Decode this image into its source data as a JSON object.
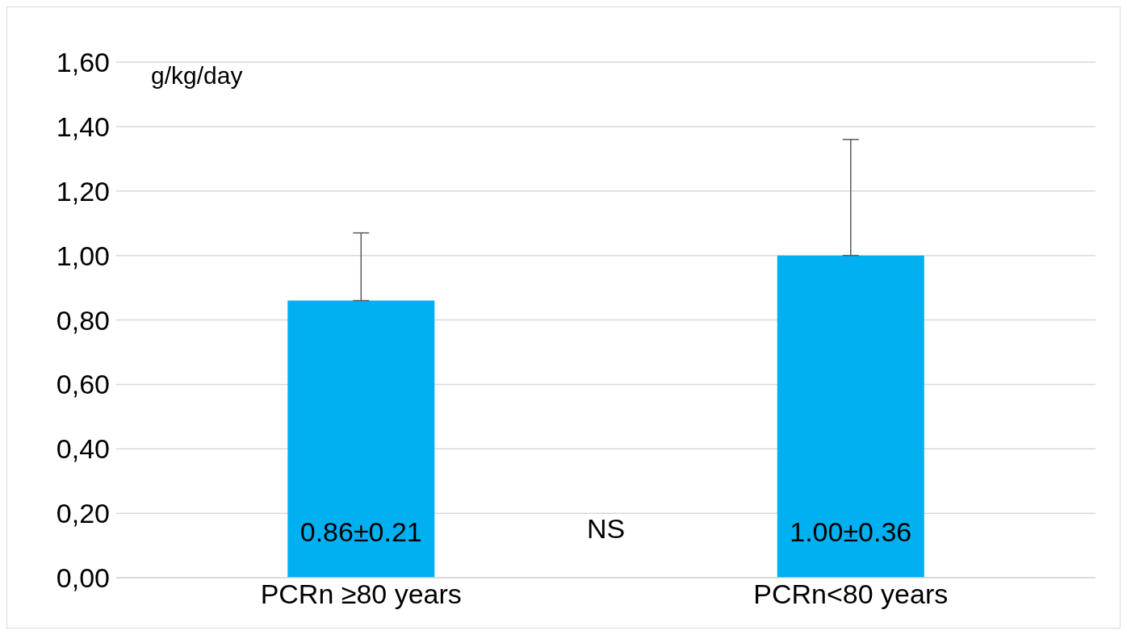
{
  "chart_data": {
    "type": "bar",
    "ylabel": "g/kg/day",
    "categories": [
      "PCRn  ≥80 years",
      "PCRn<80 years"
    ],
    "values": [
      0.86,
      1.0
    ],
    "color": "#00b0f0",
    "errors": [
      [
        0.86,
        1.07
      ],
      [
        1.0,
        1.36
      ]
    ],
    "value_labels": [
      "0.86±0.21",
      "1.00±0.36"
    ],
    "annotations": [
      "NS"
    ],
    "ylim": [
      0,
      1.6
    ],
    "yticks": [
      {
        "value": 0,
        "label": "0,00"
      },
      {
        "value": 0.2,
        "label": "0,20"
      },
      {
        "value": 0.4,
        "label": "0,40"
      },
      {
        "value": 0.6,
        "label": "0,60"
      },
      {
        "value": 0.8,
        "label": "0,80"
      },
      {
        "value": 1.0,
        "label": "1,00"
      },
      {
        "value": 1.2,
        "label": "1,20"
      },
      {
        "value": 1.4,
        "label": "1,40"
      },
      {
        "value": 1.6,
        "label": "1,60"
      }
    ],
    "grid": "y",
    "legend": false
  }
}
